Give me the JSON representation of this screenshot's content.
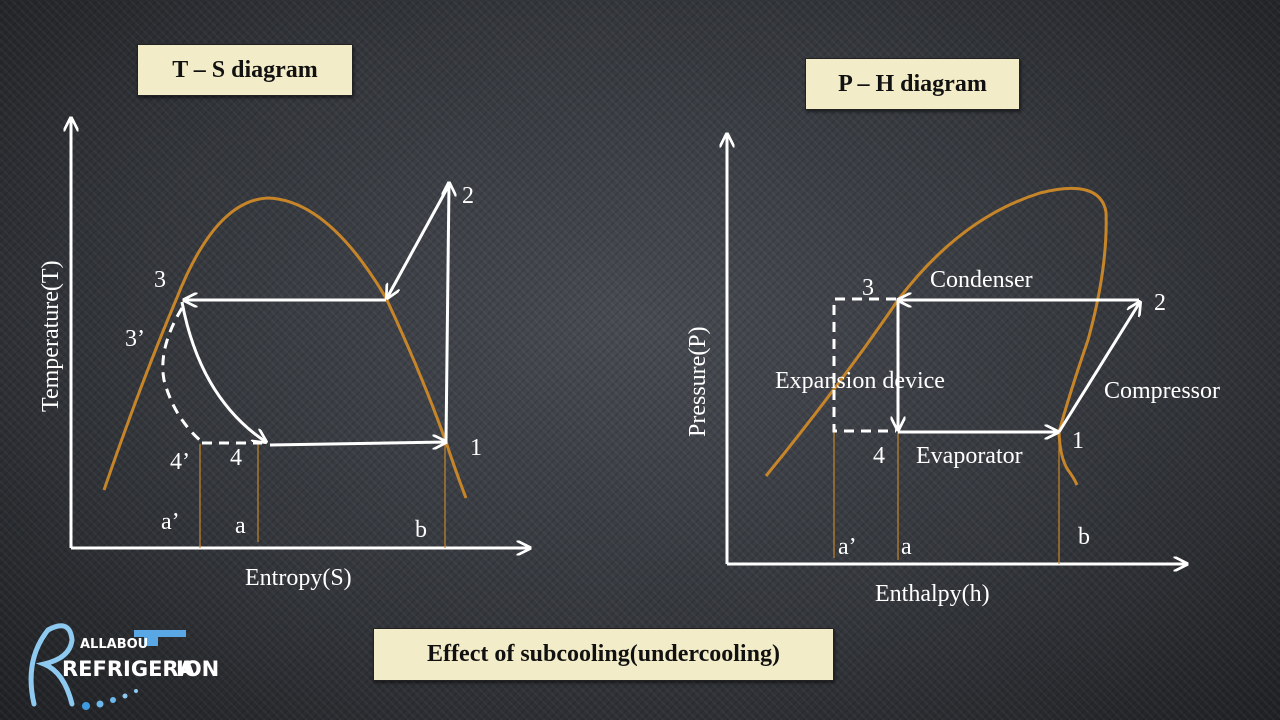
{
  "ts_diagram": {
    "title": "T – S diagram",
    "x_axis_label": "Entropy(S)",
    "y_axis_label": "Temperature(T)",
    "points": {
      "p1": "1",
      "p2": "2",
      "p3": "3",
      "p3p": "3’",
      "p4": "4",
      "p4p": "4’",
      "a": "a",
      "ap": "a’",
      "b": "b"
    }
  },
  "ph_diagram": {
    "title": "P – H diagram",
    "x_axis_label": "Enthalpy(h)",
    "y_axis_label": "Pressure(P)",
    "points": {
      "p1": "1",
      "p2": "2",
      "p3": "3",
      "p4": "4",
      "a": "a",
      "ap": "a’",
      "b": "b"
    },
    "processes": {
      "condenser": "Condenser",
      "evaporator": "Evaporator",
      "compressor": "Compressor",
      "expansion": "Expansion device"
    }
  },
  "caption": "Effect of subcooling(undercooling)",
  "logo": {
    "top_text": "ALLABOU",
    "main_text": "REFRIGERA",
    "tail_text": "ION"
  },
  "colors": {
    "saturation_curve": "#c7852a",
    "lines": "#ffffff",
    "title_box": "#f3ecc8"
  }
}
